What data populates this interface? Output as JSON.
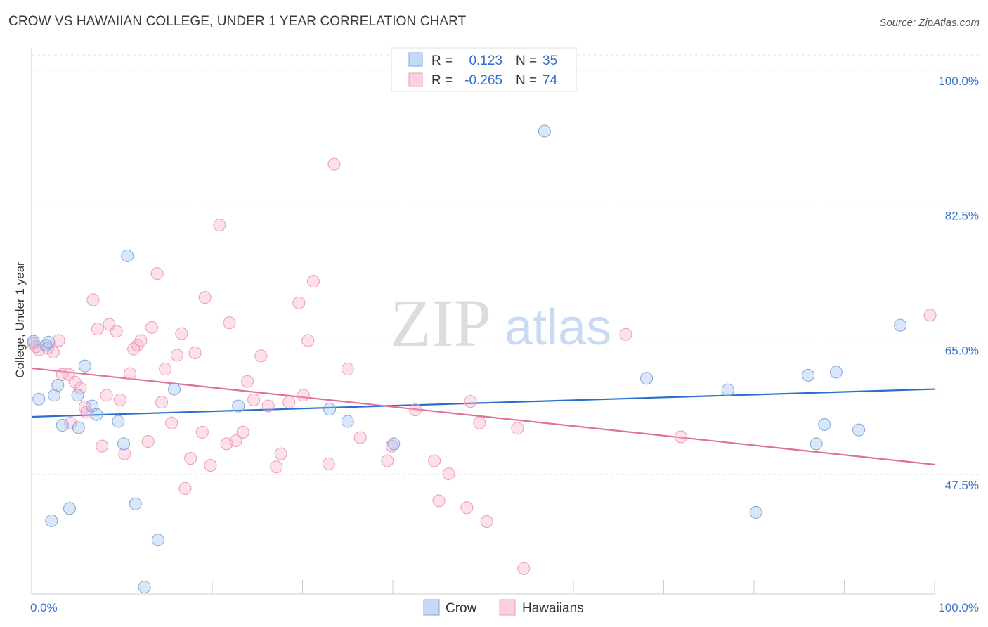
{
  "header": {
    "title": "CROW VS HAWAIIAN COLLEGE, UNDER 1 YEAR CORRELATION CHART",
    "source": "Source: ZipAtlas.com"
  },
  "watermark": {
    "zip": "ZIP",
    "atlas": "atlas"
  },
  "legend_top": {
    "rows": [
      {
        "r_label": "R =",
        "r_value": "0.123",
        "n_label": "N =",
        "n_value": "35"
      },
      {
        "r_label": "R =",
        "r_value": "-0.265",
        "n_label": "N =",
        "n_value": "74"
      }
    ]
  },
  "legend_bottom": {
    "items": [
      "Crow",
      "Hawaiians"
    ]
  },
  "chart_data": {
    "type": "scatter",
    "title": "CROW VS HAWAIIAN COLLEGE, UNDER 1 YEAR CORRELATION CHART",
    "xlabel": "",
    "ylabel": "College, Under 1 year",
    "xlim": [
      0,
      100
    ],
    "ylim": [
      32,
      102
    ],
    "x_tick_labels": [
      "0.0%",
      "100.0%"
    ],
    "y_ticks": [
      47.5,
      65.0,
      82.5,
      100.0
    ],
    "y_tick_labels": [
      "47.5%",
      "65.0%",
      "82.5%",
      "100.0%"
    ],
    "grid": true,
    "legend_position": "top-center",
    "colors": {
      "crow": "#6fa0e0",
      "crow_line": "#2a6fd0",
      "hawaiians": "#f2a0bd",
      "hawaiians_line": "#e0709a"
    },
    "series": [
      {
        "name": "Crow",
        "r": 0.123,
        "n": 35,
        "trend": {
          "x": [
            0,
            100
          ],
          "y": [
            55.0,
            58.6
          ]
        },
        "points": [
          {
            "x": 0.8,
            "y": 57.3
          },
          {
            "x": 1.6,
            "y": 64.3
          },
          {
            "x": 1.9,
            "y": 64.7
          },
          {
            "x": 2.2,
            "y": 41.5
          },
          {
            "x": 2.5,
            "y": 57.8
          },
          {
            "x": 2.9,
            "y": 59.1
          },
          {
            "x": 3.4,
            "y": 53.9
          },
          {
            "x": 4.2,
            "y": 43.1
          },
          {
            "x": 5.1,
            "y": 57.8
          },
          {
            "x": 5.2,
            "y": 53.6
          },
          {
            "x": 5.9,
            "y": 61.6
          },
          {
            "x": 6.7,
            "y": 56.4
          },
          {
            "x": 7.2,
            "y": 55.3
          },
          {
            "x": 9.6,
            "y": 54.4
          },
          {
            "x": 10.2,
            "y": 51.5
          },
          {
            "x": 10.6,
            "y": 75.9
          },
          {
            "x": 11.5,
            "y": 43.7
          },
          {
            "x": 12.5,
            "y": 32.9
          },
          {
            "x": 14.0,
            "y": 39.0
          },
          {
            "x": 15.8,
            "y": 58.6
          },
          {
            "x": 22.9,
            "y": 56.4
          },
          {
            "x": 33.0,
            "y": 56.0
          },
          {
            "x": 35.0,
            "y": 54.4
          },
          {
            "x": 40.1,
            "y": 51.5
          },
          {
            "x": 56.8,
            "y": 92.1
          },
          {
            "x": 68.1,
            "y": 60.0
          },
          {
            "x": 77.1,
            "y": 58.5
          },
          {
            "x": 80.2,
            "y": 42.6
          },
          {
            "x": 86.0,
            "y": 60.4
          },
          {
            "x": 86.9,
            "y": 51.5
          },
          {
            "x": 87.8,
            "y": 54.0
          },
          {
            "x": 89.1,
            "y": 60.8
          },
          {
            "x": 91.6,
            "y": 53.3
          },
          {
            "x": 96.2,
            "y": 66.9
          },
          {
            "x": 0.2,
            "y": 64.8
          }
        ]
      },
      {
        "name": "Hawaiians",
        "r": -0.265,
        "n": 74,
        "trend": {
          "x": [
            0,
            100
          ],
          "y": [
            61.3,
            48.8
          ]
        },
        "points": [
          {
            "x": 0.2,
            "y": 64.5
          },
          {
            "x": 0.8,
            "y": 63.7
          },
          {
            "x": 1.8,
            "y": 63.9
          },
          {
            "x": 2.4,
            "y": 63.4
          },
          {
            "x": 3.0,
            "y": 64.9
          },
          {
            "x": 3.4,
            "y": 60.5
          },
          {
            "x": 4.1,
            "y": 60.5
          },
          {
            "x": 4.3,
            "y": 54.2
          },
          {
            "x": 4.8,
            "y": 59.5
          },
          {
            "x": 5.4,
            "y": 58.7
          },
          {
            "x": 5.9,
            "y": 56.3
          },
          {
            "x": 6.1,
            "y": 55.6
          },
          {
            "x": 6.8,
            "y": 70.2
          },
          {
            "x": 7.3,
            "y": 66.4
          },
          {
            "x": 7.8,
            "y": 51.2
          },
          {
            "x": 8.3,
            "y": 57.8
          },
          {
            "x": 8.6,
            "y": 67.0
          },
          {
            "x": 9.4,
            "y": 66.1
          },
          {
            "x": 9.8,
            "y": 57.2
          },
          {
            "x": 10.3,
            "y": 50.2
          },
          {
            "x": 10.9,
            "y": 60.6
          },
          {
            "x": 11.3,
            "y": 63.8
          },
          {
            "x": 11.7,
            "y": 64.3
          },
          {
            "x": 12.1,
            "y": 64.9
          },
          {
            "x": 12.9,
            "y": 51.8
          },
          {
            "x": 13.3,
            "y": 66.6
          },
          {
            "x": 13.9,
            "y": 73.6
          },
          {
            "x": 14.4,
            "y": 56.9
          },
          {
            "x": 14.8,
            "y": 61.2
          },
          {
            "x": 15.5,
            "y": 54.2
          },
          {
            "x": 16.1,
            "y": 63.0
          },
          {
            "x": 16.6,
            "y": 65.8
          },
          {
            "x": 17.0,
            "y": 45.7
          },
          {
            "x": 17.6,
            "y": 49.6
          },
          {
            "x": 18.1,
            "y": 63.3
          },
          {
            "x": 18.9,
            "y": 53.0
          },
          {
            "x": 19.2,
            "y": 70.5
          },
          {
            "x": 19.8,
            "y": 48.7
          },
          {
            "x": 20.8,
            "y": 79.9
          },
          {
            "x": 21.6,
            "y": 51.5
          },
          {
            "x": 21.9,
            "y": 67.2
          },
          {
            "x": 22.6,
            "y": 51.9
          },
          {
            "x": 23.4,
            "y": 53.0
          },
          {
            "x": 23.9,
            "y": 59.6
          },
          {
            "x": 24.6,
            "y": 57.2
          },
          {
            "x": 25.4,
            "y": 62.9
          },
          {
            "x": 26.2,
            "y": 56.4
          },
          {
            "x": 27.1,
            "y": 48.5
          },
          {
            "x": 27.6,
            "y": 50.2
          },
          {
            "x": 28.5,
            "y": 56.9
          },
          {
            "x": 29.6,
            "y": 69.8
          },
          {
            "x": 30.1,
            "y": 57.8
          },
          {
            "x": 30.6,
            "y": 64.9
          },
          {
            "x": 31.2,
            "y": 72.6
          },
          {
            "x": 32.9,
            "y": 48.9
          },
          {
            "x": 33.5,
            "y": 87.8
          },
          {
            "x": 35.0,
            "y": 61.2
          },
          {
            "x": 36.4,
            "y": 52.3
          },
          {
            "x": 39.4,
            "y": 49.3
          },
          {
            "x": 39.9,
            "y": 51.2
          },
          {
            "x": 42.5,
            "y": 55.9
          },
          {
            "x": 44.6,
            "y": 49.3
          },
          {
            "x": 45.1,
            "y": 44.1
          },
          {
            "x": 46.2,
            "y": 47.6
          },
          {
            "x": 48.2,
            "y": 43.2
          },
          {
            "x": 48.6,
            "y": 57.0
          },
          {
            "x": 49.6,
            "y": 54.2
          },
          {
            "x": 50.4,
            "y": 41.4
          },
          {
            "x": 53.8,
            "y": 53.5
          },
          {
            "x": 54.5,
            "y": 35.3
          },
          {
            "x": 65.8,
            "y": 65.7
          },
          {
            "x": 71.9,
            "y": 52.4
          },
          {
            "x": 99.5,
            "y": 68.2
          },
          {
            "x": 0.5,
            "y": 64.1
          }
        ]
      }
    ]
  }
}
